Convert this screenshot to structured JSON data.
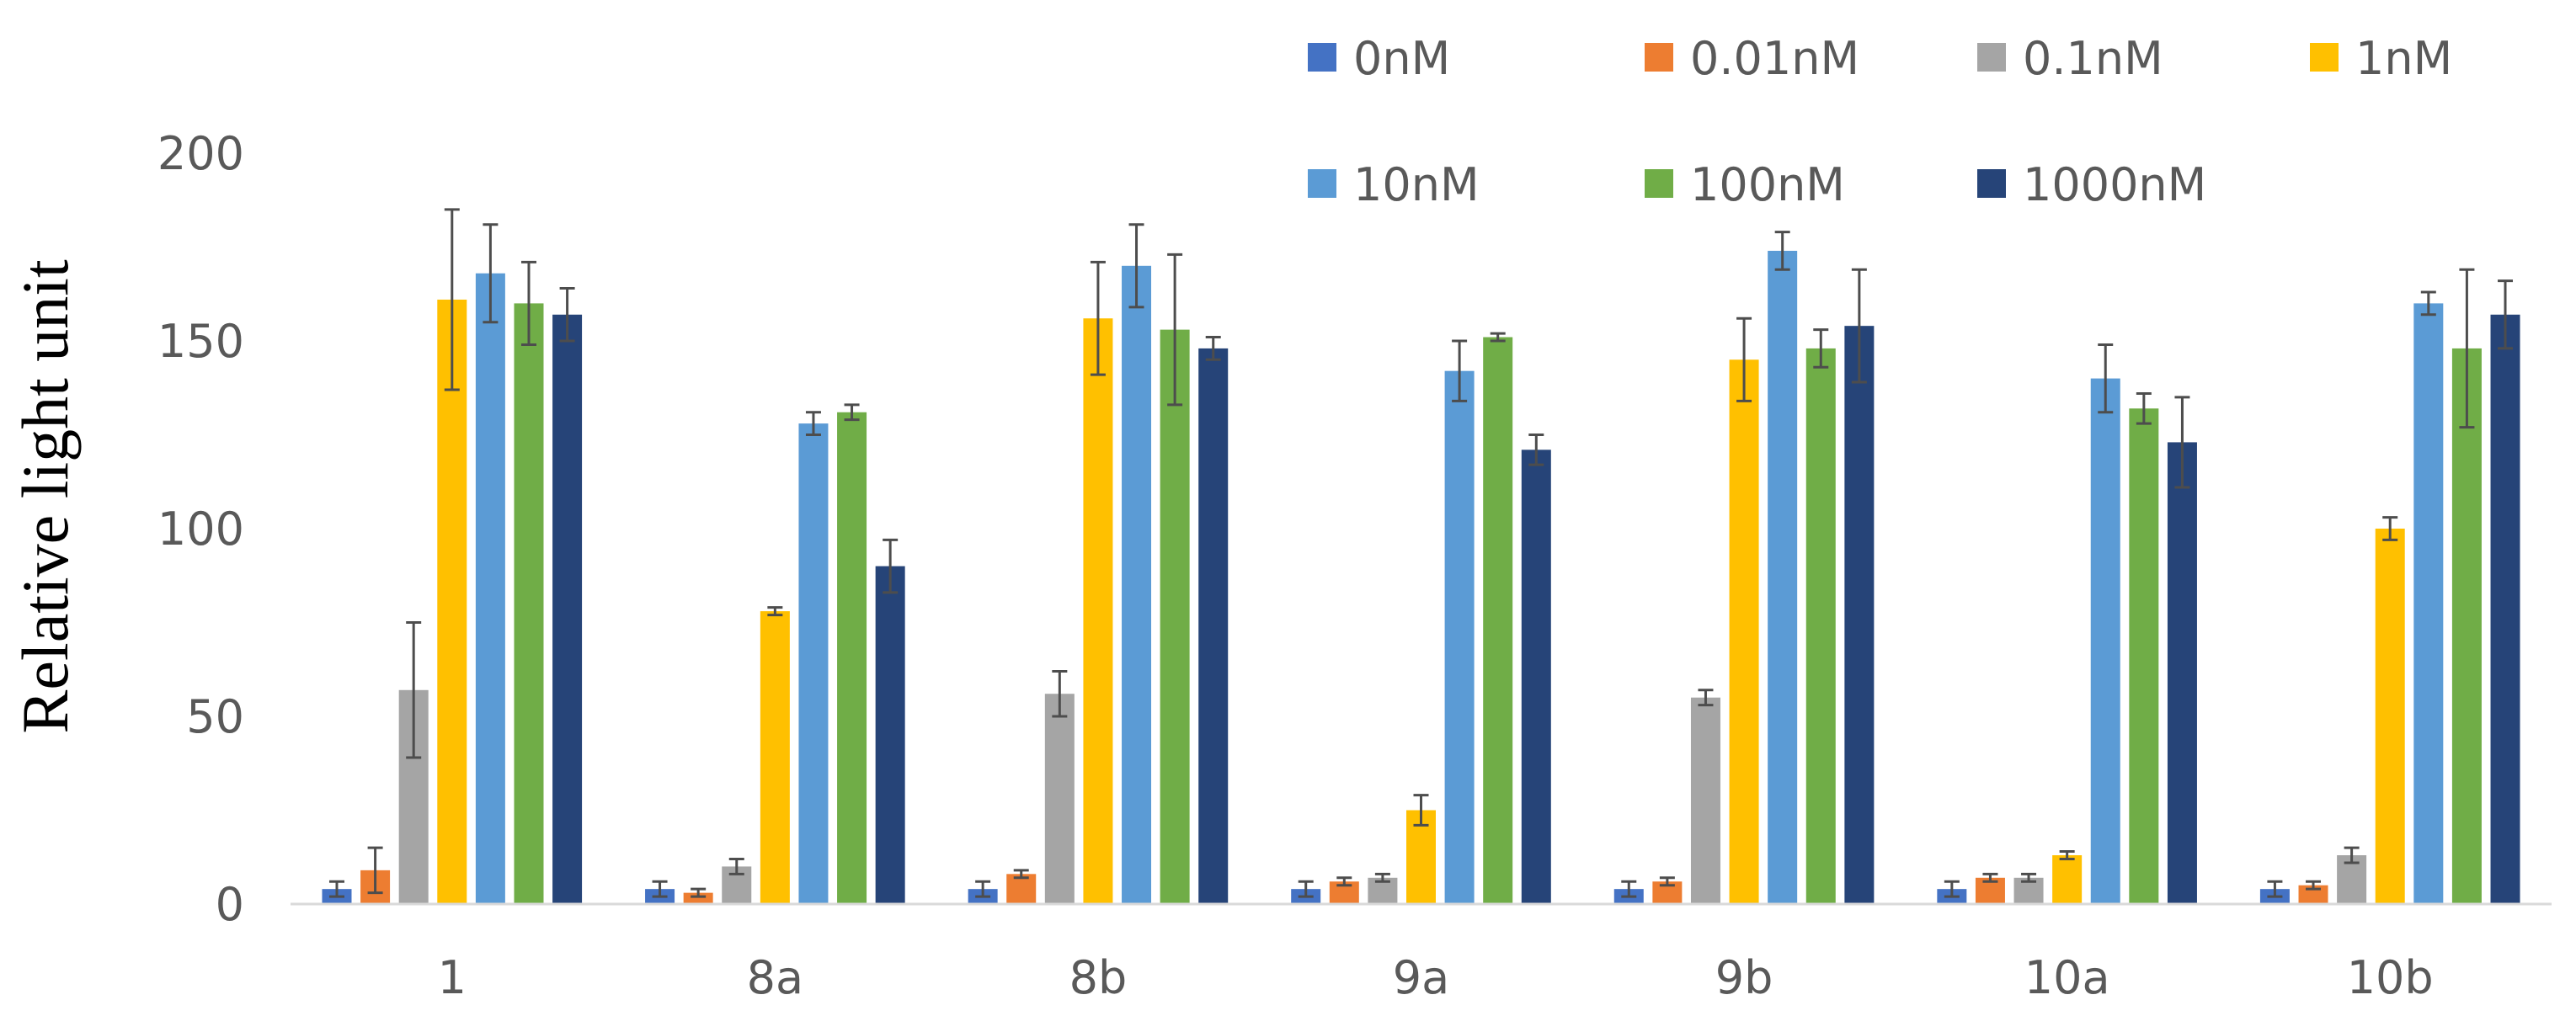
{
  "chart_data": {
    "type": "bar",
    "title": "",
    "xlabel": "",
    "ylabel": "Relative light unit",
    "ylim": [
      0,
      200
    ],
    "yticks": [
      0,
      50,
      100,
      150,
      200
    ],
    "ytick_labels": [
      "0",
      "50",
      "100",
      "150",
      "200"
    ],
    "grid": false,
    "legend_position": "top-right",
    "categories": [
      "1",
      "8a",
      "8b",
      "9a",
      "9b",
      "10a",
      "10b"
    ],
    "series": [
      {
        "name": "0nM",
        "color": "#4472C4",
        "values": [
          4,
          4,
          4,
          4,
          4,
          4,
          4
        ],
        "errors": [
          2,
          2,
          2,
          2,
          2,
          2,
          2
        ]
      },
      {
        "name": "0.01nM",
        "color": "#ED7D31",
        "values": [
          9,
          3,
          8,
          6,
          6,
          7,
          5
        ],
        "errors": [
          6,
          1,
          1,
          1,
          1,
          1,
          1
        ]
      },
      {
        "name": "0.1nM",
        "color": "#A5A5A5",
        "values": [
          57,
          10,
          56,
          7,
          55,
          7,
          13
        ],
        "errors": [
          18,
          2,
          6,
          1,
          2,
          1,
          2
        ]
      },
      {
        "name": "1nM",
        "color": "#FFC000",
        "values": [
          161,
          78,
          156,
          25,
          145,
          13,
          100
        ],
        "errors": [
          24,
          1,
          15,
          4,
          11,
          1,
          3
        ]
      },
      {
        "name": "10nM",
        "color": "#5B9BD5",
        "values": [
          168,
          128,
          170,
          142,
          174,
          140,
          160
        ],
        "errors": [
          13,
          3,
          11,
          8,
          5,
          9,
          3
        ]
      },
      {
        "name": "100nM",
        "color": "#70AD47",
        "values": [
          160,
          131,
          153,
          151,
          148,
          132,
          148
        ],
        "errors": [
          11,
          2,
          20,
          1,
          5,
          4,
          21
        ]
      },
      {
        "name": "1000nM",
        "color": "#264478",
        "values": [
          157,
          90,
          148,
          121,
          154,
          123,
          157
        ],
        "errors": [
          7,
          7,
          3,
          4,
          15,
          12,
          9
        ]
      }
    ]
  }
}
